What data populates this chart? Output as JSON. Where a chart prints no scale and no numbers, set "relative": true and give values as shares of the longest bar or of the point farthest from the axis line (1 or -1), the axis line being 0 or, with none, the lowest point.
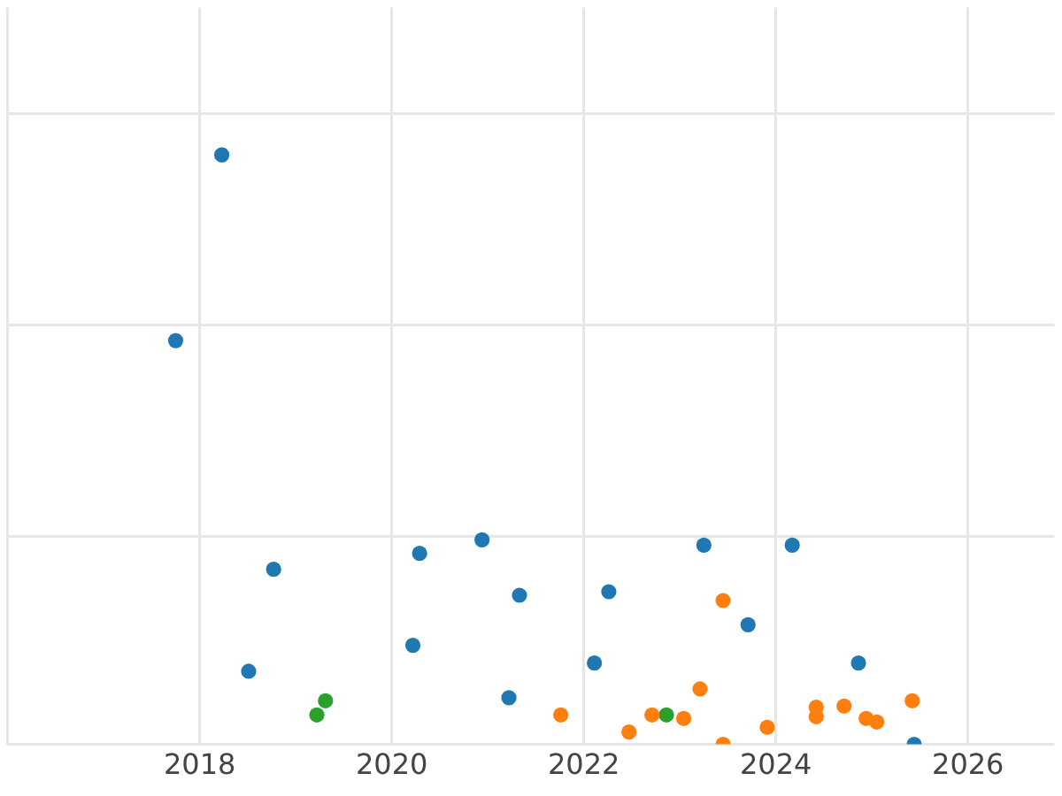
{
  "chart_data": {
    "type": "scatter",
    "relative": true,
    "grid": true,
    "marker": "circle",
    "tick_labels": "x",
    "legend": false,
    "xlim": [
      2016,
      2026.9
    ],
    "xticks": [
      {
        "value": 2016,
        "label": null
      },
      2018,
      2020,
      2022,
      2024,
      2026
    ],
    "series": [
      {
        "color": "#1f77b4",
        "x": [
          2017.75,
          2018.23,
          2018.77,
          2018.51,
          2020.29,
          2020.22,
          2020.94,
          2021.33,
          2021.22,
          2022.11,
          2022.26,
          2023.25,
          2023.71,
          2024.17,
          2024.86,
          2025.44
        ],
        "values": [
          0.685,
          1,
          0.297,
          0.124,
          0.324,
          0.168,
          0.347,
          0.253,
          0.079,
          0.138,
          0.259,
          0.338,
          0.203,
          0.338,
          0.138,
          0
        ]
      },
      {
        "color": "#ff7f0e",
        "x": [
          2021.76,
          2022.47,
          2022.71,
          2023.04,
          2023.21,
          2023.45,
          2023.45,
          2023.91,
          2024.42,
          2024.42,
          2024.71,
          2024.94,
          2025.05,
          2025.42
        ],
        "values": [
          0.05,
          0.021,
          0.05,
          0.044,
          0.094,
          0.244,
          0,
          0.029,
          0.063,
          0.047,
          0.065,
          0.044,
          0.038,
          0.074
        ]
      },
      {
        "color": "#2ca02c",
        "x": [
          2019.22,
          2019.31,
          2022.86
        ],
        "values": [
          0.05,
          0.074,
          0.05
        ]
      }
    ]
  }
}
